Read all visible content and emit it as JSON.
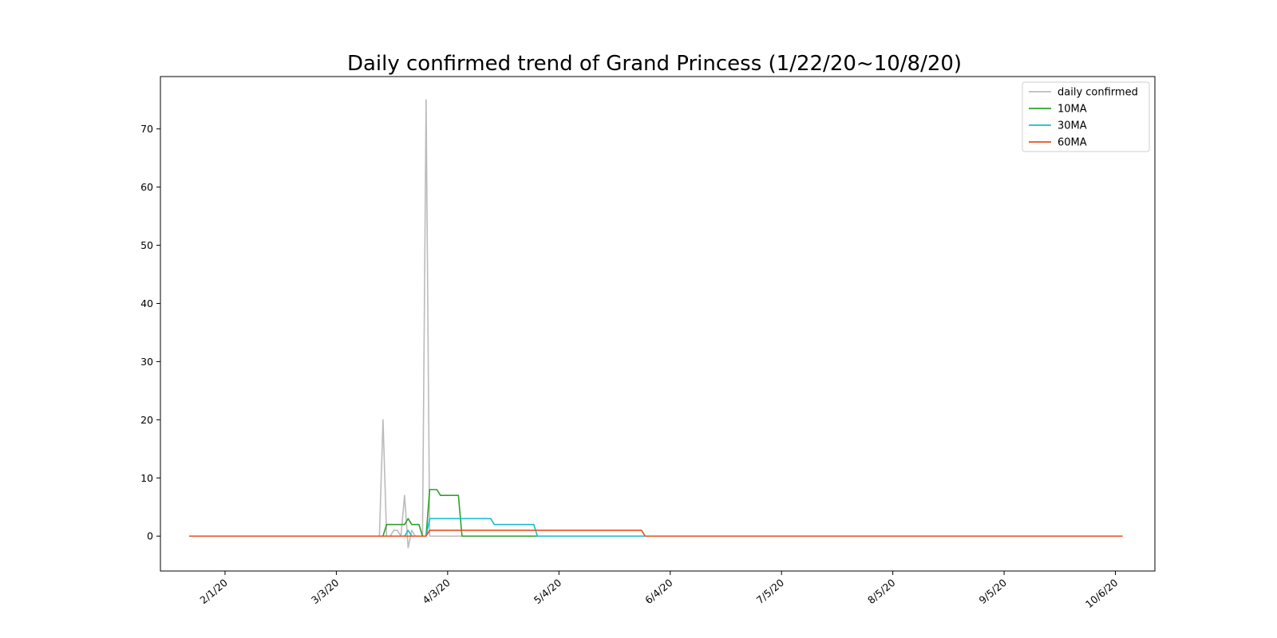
{
  "chart_data": {
    "type": "line",
    "title": "Daily confirmed trend of Grand Princess (1/22/20~10/8/20)",
    "xlabel": "",
    "ylabel": "",
    "x_start": "2020-01-22",
    "x_end": "2020-10-08",
    "xlim": [
      "2020-01-14",
      "2020-10-17"
    ],
    "ylim": [
      -6,
      79
    ],
    "y_ticks": [
      0,
      10,
      20,
      30,
      40,
      50,
      60,
      70
    ],
    "x_ticks": [
      {
        "date": "2020-02-01",
        "label": "2/1/20"
      },
      {
        "date": "2020-03-03",
        "label": "3/3/20"
      },
      {
        "date": "2020-04-03",
        "label": "4/3/20"
      },
      {
        "date": "2020-05-04",
        "label": "5/4/20"
      },
      {
        "date": "2020-06-04",
        "label": "6/4/20"
      },
      {
        "date": "2020-07-05",
        "label": "7/5/20"
      },
      {
        "date": "2020-08-05",
        "label": "8/5/20"
      },
      {
        "date": "2020-09-05",
        "label": "9/5/20"
      },
      {
        "date": "2020-10-06",
        "label": "10/6/20"
      }
    ],
    "grid": false,
    "legend_position": "top-right",
    "series": [
      {
        "name": "daily confirmed",
        "color": "#bbbbbb",
        "points": [
          [
            "2020-01-22",
            0
          ],
          [
            "2020-03-15",
            0
          ],
          [
            "2020-03-16",
            20
          ],
          [
            "2020-03-17",
            0
          ],
          [
            "2020-03-18",
            0
          ],
          [
            "2020-03-19",
            1
          ],
          [
            "2020-03-20",
            1
          ],
          [
            "2020-03-21",
            0
          ],
          [
            "2020-03-22",
            7
          ],
          [
            "2020-03-23",
            -2
          ],
          [
            "2020-03-24",
            1
          ],
          [
            "2020-03-25",
            0
          ],
          [
            "2020-03-27",
            0
          ],
          [
            "2020-03-28",
            75
          ],
          [
            "2020-03-29",
            0
          ],
          [
            "2020-10-08",
            0
          ]
        ]
      },
      {
        "name": "10MA",
        "color": "#2ca02c",
        "points": [
          [
            "2020-01-22",
            0
          ],
          [
            "2020-03-16",
            0
          ],
          [
            "2020-03-17",
            2
          ],
          [
            "2020-03-22",
            2
          ],
          [
            "2020-03-23",
            3
          ],
          [
            "2020-03-24",
            2
          ],
          [
            "2020-03-26",
            2
          ],
          [
            "2020-03-27",
            0
          ],
          [
            "2020-03-28",
            0
          ],
          [
            "2020-03-29",
            8
          ],
          [
            "2020-03-31",
            8
          ],
          [
            "2020-04-01",
            7
          ],
          [
            "2020-04-06",
            7
          ],
          [
            "2020-04-07",
            0
          ],
          [
            "2020-10-08",
            0
          ]
        ]
      },
      {
        "name": "30MA",
        "color": "#17becf",
        "points": [
          [
            "2020-01-22",
            0
          ],
          [
            "2020-03-22",
            0
          ],
          [
            "2020-03-23",
            1
          ],
          [
            "2020-03-24",
            0
          ],
          [
            "2020-03-28",
            0
          ],
          [
            "2020-03-29",
            3
          ],
          [
            "2020-04-15",
            3
          ],
          [
            "2020-04-16",
            2
          ],
          [
            "2020-04-27",
            2
          ],
          [
            "2020-04-28",
            0
          ],
          [
            "2020-10-08",
            0
          ]
        ]
      },
      {
        "name": "60MA",
        "color": "#e8501a",
        "points": [
          [
            "2020-01-22",
            0
          ],
          [
            "2020-03-28",
            0
          ],
          [
            "2020-03-29",
            1
          ],
          [
            "2020-05-27",
            1
          ],
          [
            "2020-05-28",
            0
          ],
          [
            "2020-10-08",
            0
          ]
        ]
      }
    ]
  }
}
